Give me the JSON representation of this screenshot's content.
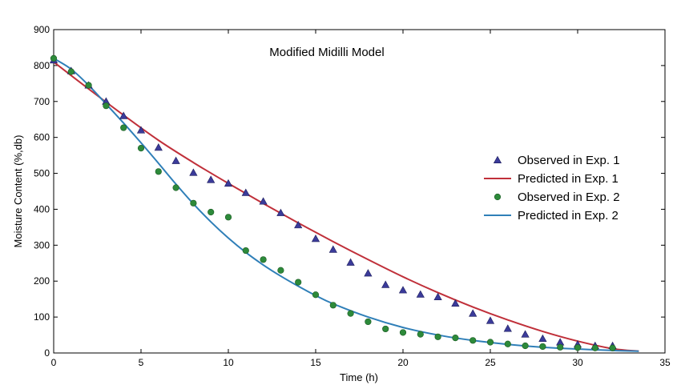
{
  "chart_data": {
    "type": "scatter",
    "title": "Modified Midilli Model",
    "xlabel": "Time (h)",
    "ylabel": "Moisture Content (%,db)",
    "xlim": [
      0,
      35
    ],
    "ylim": [
      0,
      900
    ],
    "xticks": [
      0,
      5,
      10,
      15,
      20,
      25,
      30,
      35
    ],
    "yticks": [
      0,
      100,
      200,
      300,
      400,
      500,
      600,
      700,
      800,
      900
    ],
    "grid": false,
    "legend_position": "right",
    "series": [
      {
        "name": "Observed in Exp. 1",
        "kind": "scatter",
        "marker": "triangle",
        "color": "#3b3b9a",
        "x": [
          0,
          1,
          2,
          3,
          4,
          5,
          6,
          7,
          8,
          9,
          10,
          11,
          12,
          13,
          14,
          15,
          16,
          17,
          18,
          19,
          20,
          21,
          22,
          23,
          24,
          25,
          26,
          27,
          28,
          29,
          30,
          31,
          32
        ],
        "y": [
          815,
          785,
          745,
          700,
          660,
          620,
          572,
          535,
          502,
          482,
          472,
          446,
          422,
          390,
          356,
          318,
          288,
          252,
          222,
          190,
          175,
          163,
          156,
          138,
          110,
          90,
          68,
          52,
          40,
          30,
          24,
          20,
          20
        ]
      },
      {
        "name": "Predicted in Exp. 1",
        "kind": "line",
        "color": "#c0303a",
        "x": [
          0,
          2,
          4,
          6,
          8,
          10,
          12,
          14,
          16,
          18,
          20,
          22,
          24,
          26,
          28,
          30,
          32,
          33.5
        ],
        "y": [
          810,
          735,
          662,
          592,
          530,
          472,
          416,
          362,
          310,
          260,
          212,
          168,
          128,
          92,
          60,
          33,
          12,
          5
        ]
      },
      {
        "name": "Observed in Exp. 2",
        "kind": "scatter",
        "marker": "circle",
        "color": "#2d8a3a",
        "x": [
          0,
          1,
          2,
          3,
          4,
          5,
          6,
          7,
          8,
          9,
          10,
          11,
          12,
          13,
          14,
          15,
          16,
          17,
          18,
          19,
          20,
          21,
          22,
          23,
          24,
          25,
          26,
          27,
          28,
          29,
          30,
          31,
          32
        ],
        "y": [
          820,
          783,
          745,
          688,
          627,
          570,
          505,
          460,
          417,
          392,
          378,
          285,
          260,
          230,
          197,
          162,
          133,
          110,
          87,
          67,
          57,
          52,
          45,
          42,
          35,
          30,
          25,
          20,
          18,
          16,
          15,
          14,
          14
        ]
      },
      {
        "name": "Predicted in Exp. 2",
        "kind": "line",
        "color": "#2f7fb8",
        "x": [
          0,
          1,
          2,
          3,
          4,
          5,
          6,
          7,
          8,
          9,
          10,
          11,
          12,
          13,
          14,
          15,
          16,
          18,
          20,
          22,
          24,
          26,
          28,
          30,
          32,
          33.5
        ],
        "y": [
          820,
          790,
          745,
          693,
          640,
          585,
          528,
          470,
          415,
          365,
          320,
          280,
          245,
          214,
          186,
          160,
          137,
          100,
          71,
          50,
          35,
          24,
          16,
          11,
          7,
          5
        ]
      }
    ]
  }
}
